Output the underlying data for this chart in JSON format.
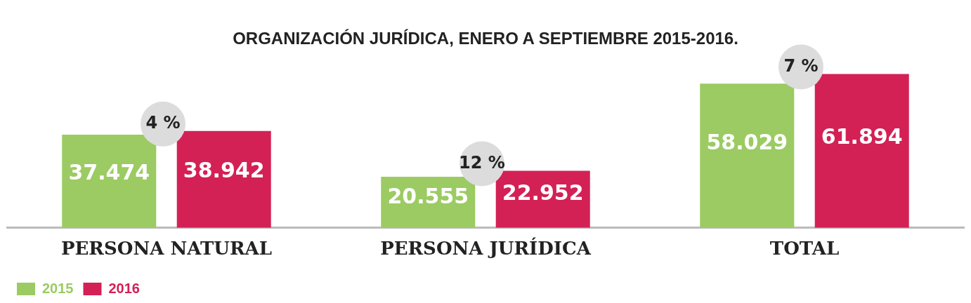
{
  "chart_data": {
    "type": "bar",
    "title": "ORGANIZACIÓN JURÍDICA, ENERO A SEPTIEMBRE 2015-2016.",
    "categories": [
      "PERSONA NATURAL",
      "PERSONA JURÍDICA",
      "TOTAL"
    ],
    "series": [
      {
        "name": "2015",
        "color": "#9bcb62",
        "values": [
          37474,
          20555,
          58029
        ],
        "value_labels": [
          "37.474",
          "20.555",
          "58.029"
        ]
      },
      {
        "name": "2016",
        "color": "#d32155",
        "values": [
          38942,
          22952,
          61894
        ],
        "value_labels": [
          "38.942",
          "22.952",
          "61.894"
        ]
      }
    ],
    "annotations": [
      "4 %",
      "12 %",
      "7 %"
    ],
    "grid": false,
    "legend": "bottom left",
    "tick_labels": "x"
  }
}
